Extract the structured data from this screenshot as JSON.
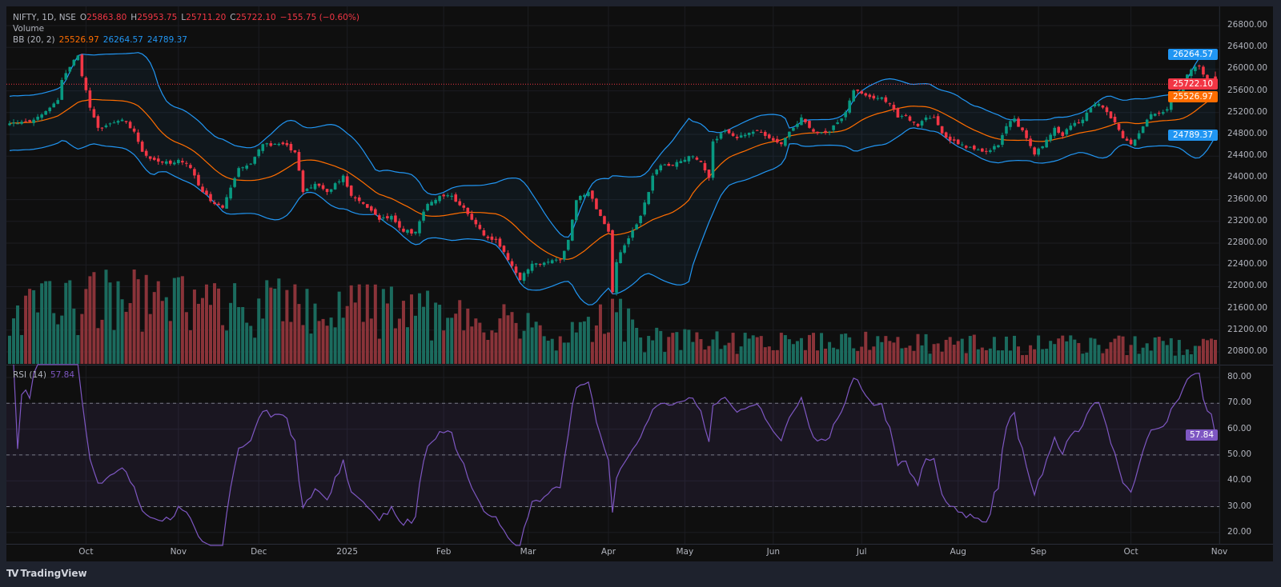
{
  "header": {
    "symbol": "NIFTY, 1D, NSE",
    "o_label": "O",
    "o": "25863.80",
    "h_label": "H",
    "h": "25953.75",
    "l_label": "L",
    "l": "25711.20",
    "c_label": "C",
    "c": "25722.10",
    "change": "−155.75 (−0.60%)",
    "volume_label": "Volume",
    "bb_label": "BB (20, 2)",
    "bb_basis": "25526.97",
    "bb_upper": "26264.57",
    "bb_lower": "24789.37"
  },
  "rsi": {
    "label": "RSI (14)",
    "value": "57.84",
    "value_num": 57.84
  },
  "branding": {
    "logo_mark": "TV",
    "logo_text": "TradingView"
  },
  "colors": {
    "up": "#089981",
    "down": "#f23645",
    "vol_up": "#1b6b5e",
    "vol_down": "#8a3339",
    "bb_band": "#2196f3",
    "bb_basis": "#ff6d00",
    "rsi": "#7e57c2",
    "last_price": "#f23645"
  },
  "chart_data": {
    "type": "candlestick",
    "title": "NIFTY, 1D, NSE",
    "price_axis": {
      "range": [
        20800,
        26800
      ],
      "ticks": [
        "26800.00",
        "26400.00",
        "26000.00",
        "25600.00",
        "25200.00",
        "24800.00",
        "24400.00",
        "24000.00",
        "23600.00",
        "23200.00",
        "22800.00",
        "22400.00",
        "22000.00",
        "21600.00",
        "21200.00",
        "20800.00"
      ]
    },
    "price_tags": [
      {
        "label": "26264.57",
        "value": 26264.57,
        "color": "#2196f3",
        "series": "bb_upper"
      },
      {
        "label": "25722.10",
        "value": 25722.1,
        "color": "#f23645",
        "series": "last_close"
      },
      {
        "label": "25526.97",
        "value": 25526.97,
        "color": "#ff6d00",
        "series": "bb_basis"
      },
      {
        "label": "24789.37",
        "value": 24789.37,
        "color": "#2196f3",
        "series": "bb_lower"
      }
    ],
    "rsi_axis": {
      "range": [
        20,
        80
      ],
      "ticks": [
        80,
        70,
        60,
        50,
        40,
        30,
        20
      ],
      "tick_labels": [
        "80.00",
        "70.00",
        "60.00",
        "50.00",
        "40.00",
        "30.00",
        "20.00"
      ],
      "bands": [
        70,
        50,
        30
      ]
    },
    "time_axis": [
      {
        "label": "Oct",
        "bar": 19
      },
      {
        "label": "Nov",
        "bar": 42
      },
      {
        "label": "Dec",
        "bar": 62
      },
      {
        "label": "2025",
        "bar": 84
      },
      {
        "label": "Feb",
        "bar": 108
      },
      {
        "label": "Mar",
        "bar": 129
      },
      {
        "label": "Apr",
        "bar": 149
      },
      {
        "label": "May",
        "bar": 168
      },
      {
        "label": "Jun",
        "bar": 190
      },
      {
        "label": "Jul",
        "bar": 212
      },
      {
        "label": "Aug",
        "bar": 236
      },
      {
        "label": "Sep",
        "bar": 256
      },
      {
        "label": "Oct",
        "bar": 279
      },
      {
        "label": "Nov",
        "bar": 301
      }
    ],
    "bar_count": 301,
    "last_bar": {
      "open": 25863.8,
      "high": 25953.75,
      "low": 25711.2,
      "close": 25722.1
    },
    "close_anchors": [
      [
        0,
        25000
      ],
      [
        6,
        25070
      ],
      [
        12,
        25430
      ],
      [
        13,
        25800
      ],
      [
        16,
        26170
      ],
      [
        17,
        26250
      ],
      [
        18,
        25870
      ],
      [
        20,
        25290
      ],
      [
        22,
        24920
      ],
      [
        25,
        25000
      ],
      [
        28,
        25070
      ],
      [
        31,
        24850
      ],
      [
        33,
        24480
      ],
      [
        36,
        24330
      ],
      [
        40,
        24260
      ],
      [
        42,
        24330
      ],
      [
        45,
        24180
      ],
      [
        48,
        23740
      ],
      [
        51,
        23520
      ],
      [
        53,
        23450
      ],
      [
        55,
        23820
      ],
      [
        57,
        24180
      ],
      [
        60,
        24260
      ],
      [
        63,
        24620
      ],
      [
        68,
        24620
      ],
      [
        71,
        24470
      ],
      [
        73,
        23740
      ],
      [
        76,
        23890
      ],
      [
        79,
        23740
      ],
      [
        83,
        24040
      ],
      [
        85,
        23670
      ],
      [
        89,
        23450
      ],
      [
        92,
        23230
      ],
      [
        95,
        23300
      ],
      [
        98,
        23010
      ],
      [
        101,
        23010
      ],
      [
        104,
        23520
      ],
      [
        107,
        23670
      ],
      [
        110,
        23670
      ],
      [
        113,
        23450
      ],
      [
        115,
        23230
      ],
      [
        118,
        22940
      ],
      [
        121,
        22860
      ],
      [
        124,
        22490
      ],
      [
        127,
        22120
      ],
      [
        130,
        22420
      ],
      [
        133,
        22440
      ],
      [
        137,
        22490
      ],
      [
        139,
        22860
      ],
      [
        141,
        23590
      ],
      [
        144,
        23740
      ],
      [
        147,
        23300
      ],
      [
        149,
        23010
      ],
      [
        150,
        21900
      ],
      [
        151,
        22450
      ],
      [
        153,
        22760
      ],
      [
        157,
        23300
      ],
      [
        159,
        23740
      ],
      [
        160,
        24040
      ],
      [
        162,
        24230
      ],
      [
        165,
        24230
      ],
      [
        169,
        24400
      ],
      [
        172,
        24290
      ],
      [
        174,
        24000
      ],
      [
        175,
        24670
      ],
      [
        178,
        24870
      ],
      [
        181,
        24730
      ],
      [
        186,
        24870
      ],
      [
        189,
        24730
      ],
      [
        192,
        24620
      ],
      [
        195,
        24920
      ],
      [
        197,
        25110
      ],
      [
        199,
        24920
      ],
      [
        201,
        24820
      ],
      [
        204,
        24850
      ],
      [
        206,
        25020
      ],
      [
        208,
        25210
      ],
      [
        210,
        25610
      ],
      [
        212,
        25550
      ],
      [
        215,
        25460
      ],
      [
        217,
        25480
      ],
      [
        219,
        25360
      ],
      [
        221,
        25110
      ],
      [
        223,
        25140
      ],
      [
        226,
        24950
      ],
      [
        228,
        25110
      ],
      [
        230,
        25110
      ],
      [
        232,
        24820
      ],
      [
        236,
        24620
      ],
      [
        241,
        24520
      ],
      [
        243,
        24480
      ],
      [
        246,
        24600
      ],
      [
        248,
        24950
      ],
      [
        250,
        25090
      ],
      [
        253,
        24730
      ],
      [
        255,
        24430
      ],
      [
        257,
        24580
      ],
      [
        260,
        24920
      ],
      [
        262,
        24770
      ],
      [
        264,
        24960
      ],
      [
        267,
        25070
      ],
      [
        269,
        25290
      ],
      [
        271,
        25360
      ],
      [
        273,
        25210
      ],
      [
        275,
        25020
      ],
      [
        277,
        24730
      ],
      [
        279,
        24620
      ],
      [
        281,
        24820
      ],
      [
        283,
        25070
      ],
      [
        284,
        25170
      ],
      [
        287,
        25210
      ],
      [
        291,
        25550
      ],
      [
        293,
        25900
      ],
      [
        294,
        25990
      ],
      [
        296,
        26050
      ],
      [
        297,
        25900
      ],
      [
        299,
        25800
      ],
      [
        300,
        25722.1
      ]
    ],
    "volume_relative_anchors": [
      [
        0,
        60
      ],
      [
        20,
        80
      ],
      [
        60,
        70
      ],
      [
        100,
        65
      ],
      [
        125,
        55
      ],
      [
        135,
        25
      ],
      [
        150,
        60
      ],
      [
        158,
        30
      ],
      [
        170,
        28
      ],
      [
        300,
        22
      ]
    ],
    "indicators": {
      "bb": {
        "period": 20,
        "mult": 2
      },
      "rsi": {
        "period": 14
      }
    }
  }
}
